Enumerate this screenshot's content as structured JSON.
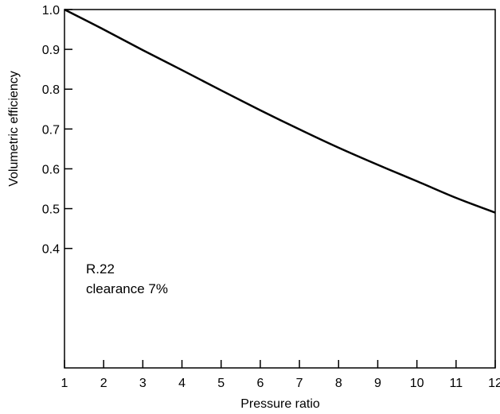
{
  "chart_data": {
    "type": "line",
    "title": "",
    "xlabel": "Pressure ratio",
    "ylabel": "Volumetric efficiency",
    "xlim": [
      1,
      12
    ],
    "ylim": [
      0.1,
      1.0
    ],
    "x_ticks": [
      1,
      2,
      3,
      4,
      5,
      6,
      7,
      8,
      9,
      10,
      11,
      12
    ],
    "x_tick_labels": [
      "1",
      "2",
      "3",
      "4",
      "5",
      "6",
      "7",
      "8",
      "9",
      "10",
      "11",
      "12"
    ],
    "y_ticks": [
      0.4,
      0.5,
      0.6,
      0.7,
      0.8,
      0.9,
      1.0
    ],
    "y_tick_labels": [
      "0.4",
      "0.5",
      "0.6",
      "0.7",
      "0.8",
      "0.9",
      "1.0"
    ],
    "grid": false,
    "series": [
      {
        "x": [
          1,
          2,
          3,
          4,
          5,
          6,
          7,
          8,
          9,
          10,
          11,
          12
        ],
        "y": [
          1.0,
          0.95,
          0.898,
          0.848,
          0.797,
          0.747,
          0.699,
          0.653,
          0.61,
          0.569,
          0.527,
          0.49
        ],
        "color": "#000000"
      }
    ],
    "annotations": [
      "R.22",
      "clearance 7%"
    ]
  }
}
